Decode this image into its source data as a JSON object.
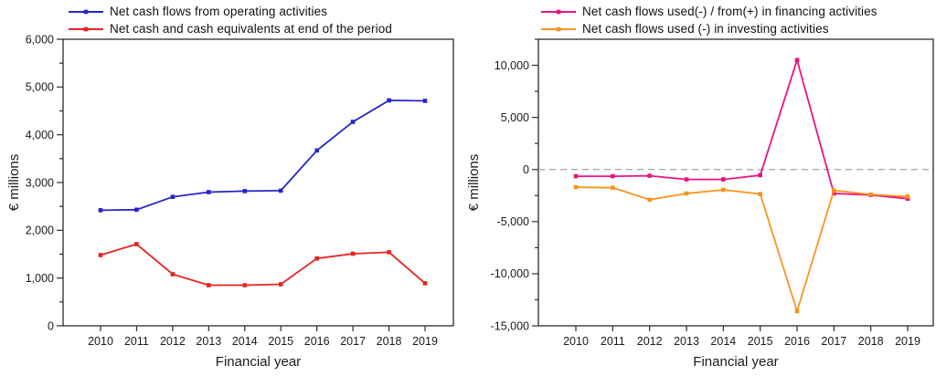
{
  "page": {
    "background": "#ffffff",
    "text_color": "#1a1a1a",
    "frame_color": "#2b2b2b",
    "zero_line_color": "#ababab"
  },
  "chart_data": [
    {
      "type": "line",
      "title": "",
      "xlabel": "Financial year",
      "ylabel": "€ millions",
      "categories": [
        "2010",
        "2011",
        "2012",
        "2013",
        "2014",
        "2015",
        "2016",
        "2017",
        "2018",
        "2019"
      ],
      "ylim": [
        0,
        6000
      ],
      "yticks": [
        0,
        1000,
        2000,
        3000,
        4000,
        5000,
        6000
      ],
      "ytick_labels": [
        "0",
        "1,000",
        "2,000",
        "3,000",
        "4,000",
        "5,000",
        "6,000"
      ],
      "yminor_step": 500,
      "grid": false,
      "zero_line": false,
      "legend_position": "top-left",
      "marker": "square",
      "series": [
        {
          "name": "Net cash flows from operating activities",
          "color": "#2425cb",
          "values": [
            2420,
            2430,
            2700,
            2800,
            2820,
            2830,
            3670,
            4270,
            4720,
            4710
          ]
        },
        {
          "name": "Net cash and cash equivalents at end of the period",
          "color": "#e6231e",
          "values": [
            1480,
            1710,
            1080,
            850,
            850,
            870,
            1410,
            1510,
            1540,
            890
          ]
        }
      ]
    },
    {
      "type": "line",
      "title": "",
      "xlabel": "Financial year",
      "ylabel": "€ millions",
      "categories": [
        "2010",
        "2011",
        "2012",
        "2013",
        "2014",
        "2015",
        "2016",
        "2017",
        "2018",
        "2019"
      ],
      "ylim": [
        -15000,
        12500
      ],
      "yticks": [
        -15000,
        -10000,
        -5000,
        0,
        5000,
        10000
      ],
      "ytick_labels": [
        "-15,000",
        "-10,000",
        "-5,000",
        "0",
        "5,000",
        "10,000"
      ],
      "yminor_step": 2500,
      "grid": false,
      "zero_line": true,
      "legend_position": "top-left",
      "marker": "square",
      "series": [
        {
          "name": "Net cash flows used(-) / from(+) in financing activities",
          "color": "#ec1380",
          "values": [
            -650,
            -650,
            -600,
            -950,
            -950,
            -550,
            10500,
            -2300,
            -2450,
            -2800
          ]
        },
        {
          "name": "Net cash flows used (-) in investing activities",
          "color": "#f7941d",
          "values": [
            -1700,
            -1750,
            -2900,
            -2300,
            -1950,
            -2350,
            -13600,
            -2000,
            -2400,
            -2600
          ]
        }
      ]
    }
  ]
}
